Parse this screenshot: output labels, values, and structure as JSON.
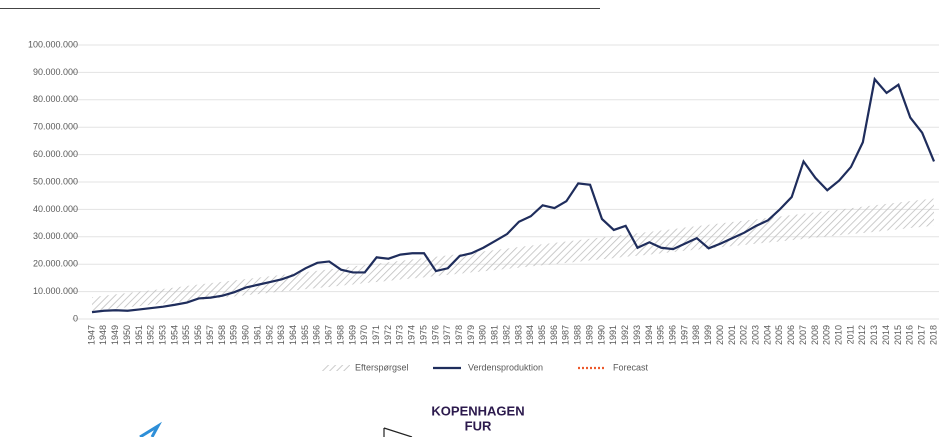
{
  "chart_data": {
    "type": "line",
    "categories": [
      "1947",
      "1948",
      "1949",
      "1950",
      "1951",
      "1952",
      "1953",
      "1954",
      "1955",
      "1956",
      "1957",
      "1958",
      "1959",
      "1960",
      "1961",
      "1962",
      "1963",
      "1964",
      "1965",
      "1966",
      "1967",
      "1968",
      "1969",
      "1970",
      "1971",
      "1972",
      "1973",
      "1974",
      "1975",
      "1976",
      "1977",
      "1978",
      "1979",
      "1980",
      "1981",
      "1982",
      "1983",
      "1984",
      "1985",
      "1986",
      "1987",
      "1988",
      "1989",
      "1990",
      "1991",
      "1992",
      "1993",
      "1994",
      "1995",
      "1996",
      "1997",
      "1998",
      "1999",
      "2000",
      "2001",
      "2002",
      "2003",
      "2004",
      "2005",
      "2006",
      "2007",
      "2008",
      "2009",
      "2010",
      "2011",
      "2012",
      "2013",
      "2014",
      "2015",
      "2016",
      "2017",
      "2018"
    ],
    "band": {
      "name": "Efterspørgsel",
      "color": "#bfbfbf",
      "low": [
        3000000,
        3400000,
        3900000,
        4300000,
        4700000,
        5200000,
        5600000,
        6100000,
        6500000,
        6900000,
        7400000,
        7800000,
        8200000,
        8700000,
        9100000,
        9600000,
        10000000,
        10400000,
        10900000,
        11300000,
        11700000,
        12200000,
        12600000,
        13100000,
        13500000,
        13900000,
        14400000,
        14800000,
        15200000,
        15700000,
        16100000,
        16500000,
        17000000,
        17400000,
        17900000,
        18300000,
        18700000,
        19200000,
        19600000,
        20000000,
        20500000,
        20900000,
        21400000,
        21800000,
        22200000,
        22700000,
        23100000,
        23500000,
        24000000,
        24400000,
        24900000,
        25300000,
        25700000,
        26200000,
        26600000,
        27000000,
        27500000,
        27900000,
        28300000,
        28800000,
        29200000,
        29700000,
        30100000,
        30500000,
        31000000,
        31400000,
        31800000,
        32300000,
        32700000,
        33200000,
        33600000,
        34000000
      ],
      "high": [
        8000000,
        8500000,
        9000000,
        9500000,
        10000000,
        10500000,
        11000000,
        11500000,
        12100000,
        12600000,
        13100000,
        13600000,
        14100000,
        14600000,
        15100000,
        15600000,
        16100000,
        16600000,
        17100000,
        17600000,
        18100000,
        18600000,
        19200000,
        19700000,
        20200000,
        20700000,
        21200000,
        21700000,
        22200000,
        22700000,
        23200000,
        23700000,
        24200000,
        24700000,
        25200000,
        25700000,
        26300000,
        26800000,
        27300000,
        27800000,
        28300000,
        28800000,
        29300000,
        29800000,
        30300000,
        30800000,
        31300000,
        31800000,
        32300000,
        32800000,
        33400000,
        33900000,
        34400000,
        34900000,
        35400000,
        35900000,
        36400000,
        36900000,
        37400000,
        37900000,
        38400000,
        38900000,
        39400000,
        39900000,
        40400000,
        41000000,
        41500000,
        42000000,
        42500000,
        43000000,
        43500000,
        44000000
      ]
    },
    "series": [
      {
        "name": "Verdensproduktion",
        "color": "#1f2d5c",
        "dash": "solid",
        "values": [
          2500000,
          3000000,
          3200000,
          3000000,
          3500000,
          4000000,
          4500000,
          5200000,
          6000000,
          7500000,
          7800000,
          8500000,
          9800000,
          11500000,
          12500000,
          13500000,
          14500000,
          16000000,
          18500000,
          20500000,
          21000000,
          18000000,
          17000000,
          17000000,
          22500000,
          22000000,
          23500000,
          24000000,
          24000000,
          17500000,
          18500000,
          23000000,
          24000000,
          26000000,
          28500000,
          31000000,
          35500000,
          37500000,
          41500000,
          40500000,
          43000000,
          49500000,
          49000000,
          36500000,
          32500000,
          34000000,
          26000000,
          28000000,
          26000000,
          25500000,
          27500000,
          29500000,
          25800000,
          27500000,
          29500000,
          31500000,
          34000000,
          36000000,
          40000000,
          44500000,
          57500000,
          51500000,
          47000000,
          50500000,
          55500000,
          64500000,
          87500000,
          82500000,
          85500000,
          73500000,
          68000000,
          57500000
        ]
      },
      {
        "name": "Forecast",
        "color": "#ed5a2c",
        "dash": "dotted",
        "values": [
          null,
          null,
          null,
          null,
          null,
          null,
          null,
          null,
          null,
          null,
          null,
          null,
          null,
          null,
          null,
          null,
          null,
          null,
          null,
          null,
          null,
          null,
          null,
          null,
          null,
          null,
          null,
          null,
          null,
          null,
          null,
          null,
          null,
          null,
          null,
          null,
          null,
          null,
          null,
          null,
          null,
          null,
          null,
          null,
          null,
          null,
          null,
          null,
          null,
          null,
          null,
          null,
          null,
          null,
          null,
          null,
          null,
          null,
          null,
          null,
          null,
          null,
          null,
          null,
          null,
          null,
          null,
          null,
          null,
          null,
          null,
          57500000
        ]
      }
    ],
    "ylim": [
      0,
      100000000
    ],
    "yticks": [
      0,
      {
        "value": 10000000,
        "label": "10.000.000"
      },
      {
        "value": 20000000,
        "label": "20.000.000"
      },
      {
        "value": 30000000,
        "label": "30.000.000"
      },
      {
        "value": 40000000,
        "label": "40.000.000"
      },
      {
        "value": 50000000,
        "label": "50.000.000"
      },
      {
        "value": 60000000,
        "label": "60.000.000"
      },
      {
        "value": 70000000,
        "label": "70.000.000"
      },
      {
        "value": 80000000,
        "label": "80.000.000"
      },
      {
        "value": 90000000,
        "label": "90.000.000"
      },
      {
        "value": 100000000,
        "label": "100.000.000"
      }
    ],
    "grid": true,
    "legend": "bottom"
  },
  "logo": {
    "line1": "KOPENHAGEN",
    "line2": "FUR"
  }
}
